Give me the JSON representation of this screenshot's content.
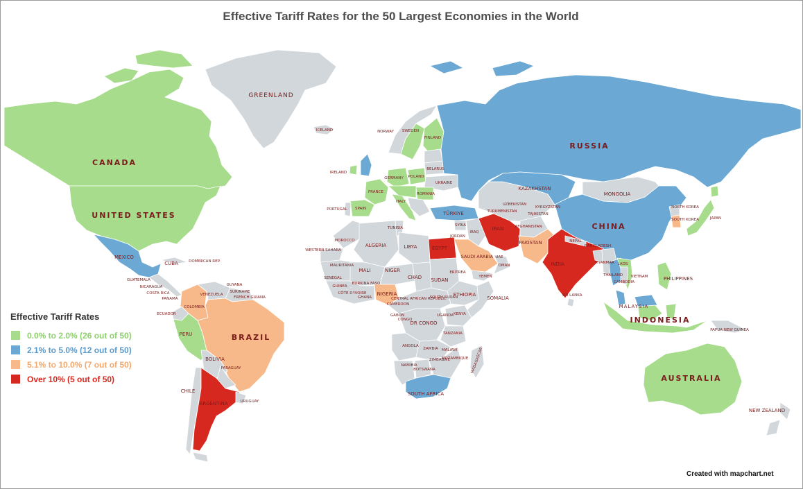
{
  "title": "Effective Tariff Rates for the 50 Largest Economies in the World",
  "colors": {
    "green": "#a6dc8b",
    "blue": "#6ba8d3",
    "orange": "#f8b98a",
    "red": "#d7281f",
    "nodata": "#d2d7db",
    "label": "#7a1c1c"
  },
  "legend": {
    "title": "Effective Tariff Rates",
    "items": [
      {
        "label": "0.0% to 2.0% (26 out of 50)",
        "color": "#a6dc8b",
        "text_color": "#8fcf6e"
      },
      {
        "label": "2.1% to 5.0% (12 out of 50)",
        "color": "#6ba8d3",
        "text_color": "#5a9acb"
      },
      {
        "label": "5.1% to 10.0% (7 out of 50)",
        "color": "#f8b98a",
        "text_color": "#f4a86c"
      },
      {
        "label": "Over 10% (5 out of 50)",
        "color": "#d7281f",
        "text_color": "#d7281f"
      }
    ]
  },
  "credit": "Created with mapchart.net",
  "labels": {
    "greenland": "GREENLAND",
    "canada": "CANADA",
    "united_states": "UNITED STATES",
    "mexico": "MEXICO",
    "cuba": "CUBA",
    "colombia": "COLOMBIA",
    "venezuela": "VENEZUELA",
    "guyana": "GUYANA",
    "suriname": "SURINAME",
    "french_guiana": "FRENCH GUIANA",
    "ecuador": "ECUADOR",
    "peru": "PERU",
    "brazil": "BRAZIL",
    "bolivia": "BOLIVIA",
    "paraguay": "PARAGUAY",
    "chile": "CHILE",
    "argentina": "ARGENTINA",
    "uruguay": "URUGUAY",
    "iceland": "ICELAND",
    "norway": "NORWAY",
    "sweden": "SWEDEN",
    "finland": "FINLAND",
    "ireland": "IRELAND",
    "germany": "GERMANY",
    "poland": "POLAND",
    "belarus": "BELARUS",
    "ukraine": "UKRAINE",
    "france": "FRANCE",
    "romania": "ROMANIA",
    "spain": "SPAIN",
    "portugal": "PORTUGAL",
    "italy": "ITALY",
    "turkiye": "TÜRKIYE",
    "russia": "RUSSIA",
    "kazakhstan": "KAZAKHSTAN",
    "mongolia": "MONGOLIA",
    "china": "CHINA",
    "iran": "IRAN",
    "iraq": "IRAQ",
    "syria": "SYRIA",
    "afghanistan": "AFGHANISTAN",
    "pakistan": "PAKISTAN",
    "india": "INDIA",
    "nepal": "NEPAL",
    "myanmar": "MYANMAR",
    "thailand": "THAILAND",
    "vietnam": "VIETNAM",
    "philippines": "PHILIPPINES",
    "malaysia": "MALAYSIA",
    "indonesia": "INDONESIA",
    "papua_new_guinea": "PAPUA NEW GUINEA",
    "japan": "JAPAN",
    "south_korea": "SOUTH KOREA",
    "north_korea": "NORTH KOREA",
    "uzbekistan": "UZBEKISTAN",
    "turkmenistan": "TURKMENISTAN",
    "morocco": "MOROCCO",
    "tunisia": "TUNISIA",
    "algeria": "ALGERIA",
    "libya": "LIBYA",
    "egypt": "EGYPT",
    "western_sahara": "WESTERN SAHARA",
    "mauritania": "MAURITANIA",
    "mali": "MALI",
    "niger": "NIGER",
    "chad": "CHAD",
    "sudan": "SUDAN",
    "nigeria": "NIGERIA",
    "ethiopia": "ETHIOPIA",
    "somalia": "SOMALIA",
    "kenya": "KENYA",
    "dr_congo": "DR CONGO",
    "tanzania": "TANZANIA",
    "angola": "ANGOLA",
    "zambia": "ZAMBIA",
    "namibia": "NAMIBIA",
    "botswana": "BOTSWANA",
    "madagascar": "MADAGASCAR",
    "south_africa": "SOUTH AFRICA",
    "saudi_arabia": "SAUDI ARABIA",
    "yemen": "YEMEN",
    "oman": "OMAN",
    "australia": "AUSTRALIA",
    "new_zealand": "NEW ZEALAND",
    "gabon": "GABON",
    "car": "CENTRAL AFRICAN REPUBLIC",
    "south_sudan": "SOUTH SUDAN",
    "eritrea": "ERITREA",
    "guinea": "GUINEA",
    "ghana": "GHANA",
    "cameroon": "CAMEROON",
    "congo": "CONGO",
    "mozambique": "MOZAMBIQUE",
    "zimbabwe": "ZIMBABWE",
    "malawi": "MALAWI",
    "uganda": "UGANDA",
    "burkina_faso": "BURKINA FASO",
    "cote_divoire": "CÔTE D'IVOIRE",
    "senegal": "SENEGAL",
    "guatemala": "GUATEMALA",
    "nicaragua": "NICARAGUA",
    "costa_rica": "COSTA RICA",
    "panama": "PANAMA",
    "dominican_rep": "DOMINICAN REP.",
    "jordan": "JORDAN",
    "uae": "UAE",
    "bangladesh": "BANGLADESH",
    "laos": "LAOS",
    "cambodia": "CAMBODIA",
    "sri_lanka": "SRI LANKA",
    "tajikistan": "TAJIKISTAN",
    "kyrgyzstan": "KYRGYZSTAN"
  }
}
